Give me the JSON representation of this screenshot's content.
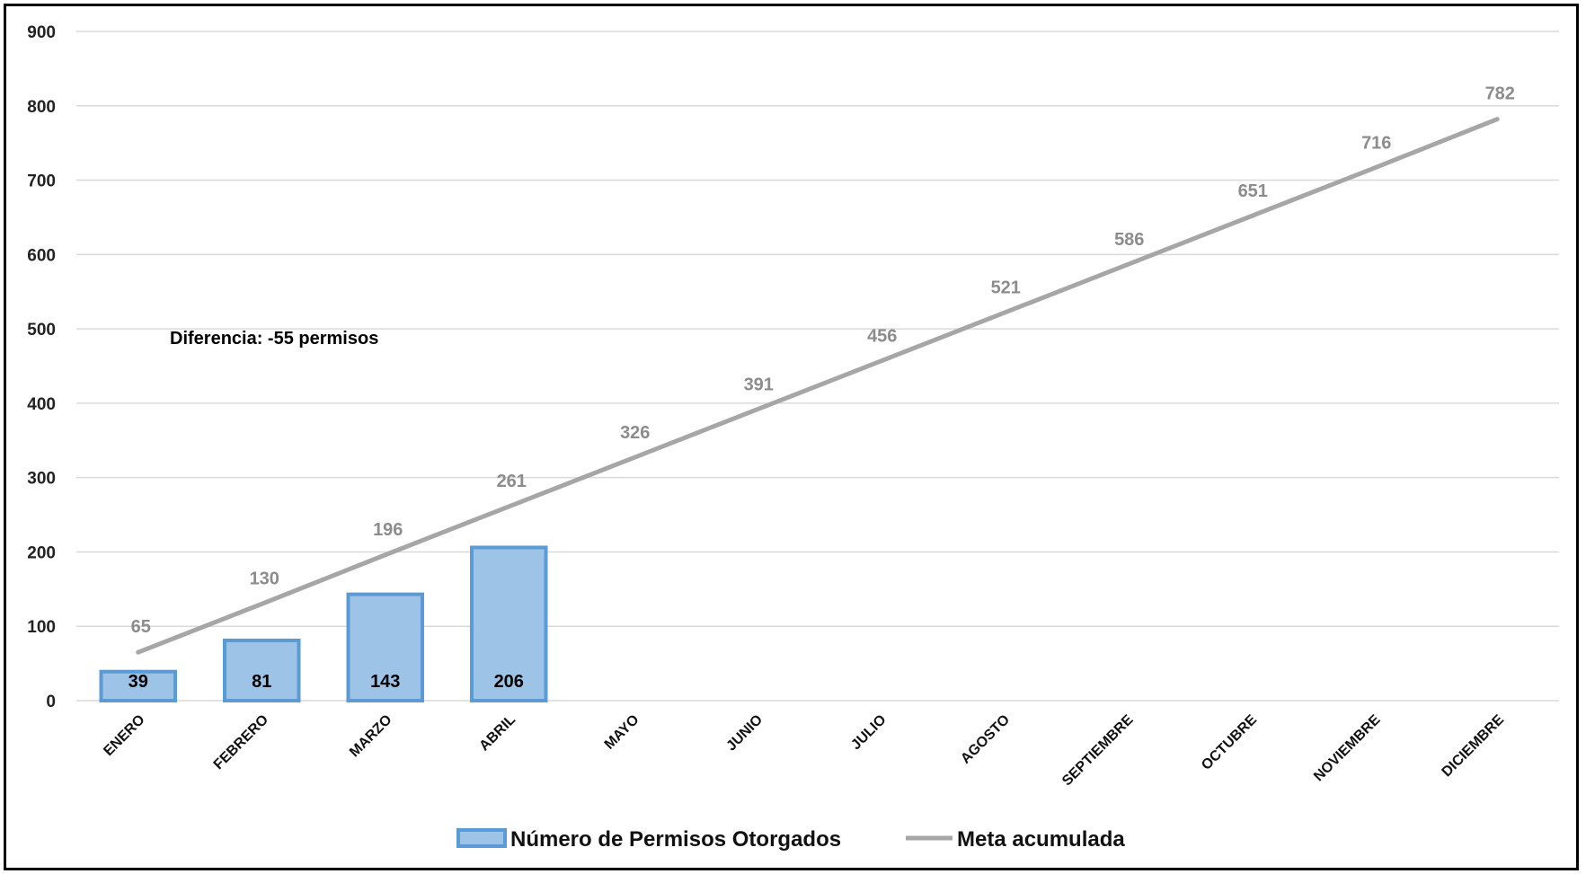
{
  "chart_data": {
    "type": "bar",
    "categories": [
      "ENERO",
      "FEBRERO",
      "MARZO",
      "ABRIL",
      "MAYO",
      "JUNIO",
      "JULIO",
      "AGOSTO",
      "SEPTIEMBRE",
      "OCTUBRE",
      "NOVIEMBRE",
      "DICIEMBRE"
    ],
    "series": [
      {
        "name": "Número de Permisos Otorgados",
        "type": "bar",
        "values": [
          39,
          81,
          143,
          206,
          null,
          null,
          null,
          null,
          null,
          null,
          null,
          null
        ]
      },
      {
        "name": "Meta acumulada",
        "type": "line",
        "values": [
          65,
          130,
          196,
          261,
          326,
          391,
          456,
          521,
          586,
          651,
          716,
          782
        ]
      }
    ],
    "ylim": [
      0,
      900
    ],
    "yticks": [
      0,
      100,
      200,
      300,
      400,
      500,
      600,
      700,
      800,
      900
    ],
    "grid": true,
    "legend": "bottom",
    "annotation": "Diferencia: -55 permisos",
    "colors": {
      "bar_fill": "#9dc3e6",
      "bar_stroke": "#5b9bd5",
      "line": "#a6a6a6",
      "line_label": "#8c8c8c",
      "grid": "#d9d9d9"
    }
  }
}
